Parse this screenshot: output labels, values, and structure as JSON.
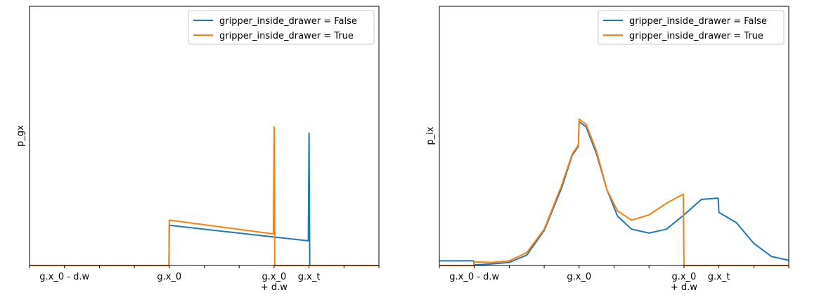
{
  "chart_data": [
    {
      "type": "line",
      "ylabel": "p_gx",
      "xlim": [
        0,
        10
      ],
      "ylim": [
        0,
        1
      ],
      "xticks": [
        {
          "x": 1,
          "label": "g.x_0 - d.w"
        },
        {
          "x": 4,
          "label": "g.x_0"
        },
        {
          "x": 7,
          "label": "g.x_0\n+ d.w"
        },
        {
          "x": 8,
          "label": "g.x_t"
        }
      ],
      "minor_xticks": [
        0,
        2,
        3,
        5,
        6,
        9,
        10
      ],
      "legend": "top-right",
      "series": [
        {
          "name": "gripper_inside_drawer = False",
          "color": "#1f77b4",
          "points": [
            [
              0,
              0
            ],
            [
              3.99,
              0
            ],
            [
              4.0,
              0.155
            ],
            [
              7.98,
              0.095
            ],
            [
              8.0,
              0.51
            ],
            [
              8.02,
              0
            ]
          ]
        },
        {
          "name": "gripper_inside_drawer = True",
          "color": "#ff7f0e",
          "points": [
            [
              0,
              0
            ],
            [
              3.99,
              0
            ],
            [
              4.0,
              0.175
            ],
            [
              6.98,
              0.122
            ],
            [
              7.0,
              0.535
            ],
            [
              7.02,
              0
            ],
            [
              10,
              0
            ]
          ]
        }
      ]
    },
    {
      "type": "line",
      "ylabel": "p_ix",
      "xlim": [
        0,
        10
      ],
      "ylim": [
        0,
        1
      ],
      "xticks": [
        {
          "x": 1,
          "label": "g.x_0 - d.w"
        },
        {
          "x": 4,
          "label": "g.x_0"
        },
        {
          "x": 7,
          "label": "g.x_0\n+ d.w"
        },
        {
          "x": 8,
          "label": "g.x_t"
        }
      ],
      "minor_xticks": [
        0,
        2,
        3,
        5,
        6,
        9,
        10
      ],
      "legend": "top-right",
      "series": [
        {
          "name": "gripper_inside_drawer = False",
          "color": "#1f77b4",
          "points": [
            [
              0,
              0.018
            ],
            [
              0.98,
              0.018
            ],
            [
              1.0,
              0.002
            ],
            [
              1.5,
              0.006
            ],
            [
              2.0,
              0.012
            ],
            [
              2.5,
              0.04
            ],
            [
              3.0,
              0.135
            ],
            [
              3.5,
              0.3
            ],
            [
              3.8,
              0.425
            ],
            [
              3.98,
              0.46
            ],
            [
              4.0,
              0.555
            ],
            [
              4.2,
              0.535
            ],
            [
              4.5,
              0.43
            ],
            [
              4.8,
              0.29
            ],
            [
              5.1,
              0.19
            ],
            [
              5.5,
              0.14
            ],
            [
              6.0,
              0.125
            ],
            [
              6.5,
              0.14
            ],
            [
              7.0,
              0.195
            ],
            [
              7.5,
              0.255
            ],
            [
              7.98,
              0.26
            ],
            [
              8.0,
              0.205
            ],
            [
              8.5,
              0.165
            ],
            [
              9.0,
              0.085
            ],
            [
              9.5,
              0.035
            ],
            [
              10.0,
              0.02
            ]
          ]
        },
        {
          "name": "gripper_inside_drawer = True",
          "color": "#ff7f0e",
          "points": [
            [
              0,
              0
            ],
            [
              0.98,
              0
            ],
            [
              1.0,
              0.014
            ],
            [
              1.5,
              0.012
            ],
            [
              2.0,
              0.018
            ],
            [
              2.5,
              0.05
            ],
            [
              3.0,
              0.14
            ],
            [
              3.5,
              0.31
            ],
            [
              3.8,
              0.43
            ],
            [
              3.98,
              0.465
            ],
            [
              4.0,
              0.565
            ],
            [
              4.2,
              0.545
            ],
            [
              4.5,
              0.44
            ],
            [
              4.8,
              0.29
            ],
            [
              5.1,
              0.21
            ],
            [
              5.5,
              0.175
            ],
            [
              6.0,
              0.195
            ],
            [
              6.5,
              0.24
            ],
            [
              6.98,
              0.275
            ],
            [
              7.0,
              0.0
            ],
            [
              10.0,
              0.0
            ]
          ]
        }
      ]
    }
  ]
}
